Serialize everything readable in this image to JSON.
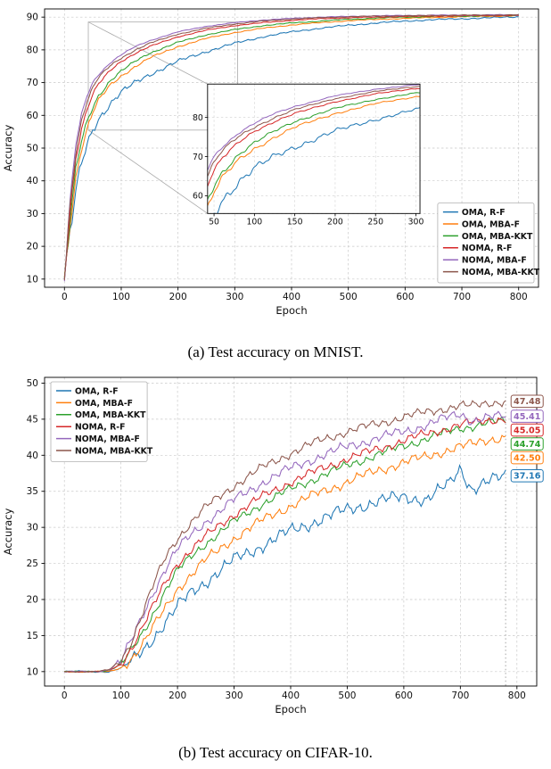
{
  "figure": {
    "caption_a": "(a) Test accuracy on MNIST.",
    "caption_b": "(b) Test accuracy on CIFAR-10."
  },
  "chart_data": [
    {
      "id": "mnist",
      "type": "line",
      "title": "",
      "xlabel": "Epoch",
      "ylabel": "Accuracy",
      "xlim": [
        -35,
        835
      ],
      "ylim": [
        7.5,
        92.5
      ],
      "xticks": [
        0,
        100,
        200,
        300,
        400,
        500,
        600,
        700,
        800
      ],
      "yticks": [
        10,
        20,
        30,
        40,
        50,
        60,
        70,
        80,
        90
      ],
      "grid": true,
      "legend_position": "lower-right",
      "noise_mode": "damped",
      "x": [
        0,
        10,
        20,
        30,
        40,
        50,
        60,
        80,
        100,
        125,
        150,
        200,
        250,
        300,
        350,
        400,
        450,
        500,
        550,
        600,
        650,
        700,
        750,
        800
      ],
      "series": [
        {
          "name": "OMA, R-F",
          "color": "#1f77b4",
          "noise": 2.0,
          "y": [
            10,
            24,
            36,
            45,
            51,
            55.5,
            59,
            63.5,
            67,
            70,
            72.5,
            76.5,
            79.5,
            82,
            84,
            85.5,
            86.6,
            87.5,
            88.2,
            88.8,
            89.2,
            89.5,
            89.8,
            90.1
          ]
        },
        {
          "name": "OMA, MBA-F",
          "color": "#ff7f0e",
          "noise": 1.3,
          "y": [
            10,
            27,
            41,
            50,
            56,
            61,
            64.5,
            69,
            72,
            75,
            77.5,
            81,
            83.5,
            85.3,
            86.6,
            87.6,
            88.3,
            88.9,
            89.3,
            89.6,
            89.9,
            90.1,
            90.3,
            90.4
          ]
        },
        {
          "name": "OMA, MBA-KKT",
          "color": "#2ca02c",
          "noise": 1.3,
          "y": [
            10,
            28,
            43,
            52,
            58,
            62.5,
            66,
            70.5,
            73.5,
            76.5,
            79,
            82.3,
            84.6,
            86.2,
            87.4,
            88.2,
            88.8,
            89.3,
            89.7,
            90,
            90.2,
            90.3,
            90.4,
            90.5
          ]
        },
        {
          "name": "NOMA, R-F",
          "color": "#d62728",
          "noise": 1.1,
          "y": [
            10,
            31,
            47,
            56,
            62,
            66.5,
            69.5,
            73.5,
            76.5,
            79,
            81,
            84,
            86,
            87.4,
            88.3,
            89,
            89.5,
            89.8,
            90,
            90.2,
            90.3,
            90.4,
            90.5,
            90.5
          ]
        },
        {
          "name": "NOMA, MBA-F",
          "color": "#9467bd",
          "noise": 0.9,
          "y": [
            10,
            34,
            51,
            60,
            66,
            70,
            72.5,
            76,
            78.5,
            81,
            82.8,
            85.5,
            87.2,
            88.3,
            89.1,
            89.6,
            90,
            90.2,
            90.4,
            90.5,
            90.6,
            90.6,
            90.7,
            90.7
          ]
        },
        {
          "name": "NOMA, MBA-KKT",
          "color": "#8c564b",
          "noise": 1.1,
          "y": [
            10,
            33,
            49,
            58.5,
            64.5,
            68.5,
            71.5,
            75,
            77.5,
            80,
            82,
            84.8,
            86.6,
            87.9,
            88.8,
            89.4,
            89.8,
            90.1,
            90.3,
            90.4,
            90.5,
            90.6,
            90.6,
            90.7
          ]
        }
      ],
      "inset": {
        "xlim": [
          42,
          305
        ],
        "ylim": [
          55.5,
          88.5
        ],
        "xticks": [
          50,
          100,
          150,
          200,
          250,
          300
        ],
        "yticks": [
          60,
          70,
          80
        ]
      }
    },
    {
      "id": "cifar",
      "type": "line",
      "title": "",
      "xlabel": "Epoch",
      "ylabel": "Accuracy",
      "xlim": [
        -35,
        835
      ],
      "ylim": [
        8,
        50.8
      ],
      "xticks": [
        0,
        100,
        200,
        300,
        400,
        500,
        600,
        700,
        800
      ],
      "yticks": [
        10,
        15,
        20,
        25,
        30,
        35,
        40,
        45,
        50
      ],
      "grid": true,
      "legend_position": "upper-left",
      "noise_mode": "flat-start",
      "vline_x": 780,
      "x": [
        0,
        20,
        40,
        60,
        80,
        100,
        120,
        140,
        160,
        180,
        200,
        225,
        250,
        275,
        300,
        350,
        400,
        450,
        500,
        550,
        600,
        640,
        680,
        700,
        720,
        750,
        780
      ],
      "series": [
        {
          "name": "OMA, R-F",
          "color": "#1f77b4",
          "noise": 1.2,
          "end_label": "37.16",
          "end_value": 37.16,
          "y": [
            10,
            10,
            10,
            10,
            10,
            10.5,
            11.5,
            13,
            15,
            17,
            19,
            21,
            22.5,
            24,
            25.5,
            27.5,
            29.5,
            31,
            32.5,
            33.5,
            34.3,
            33.8,
            36,
            38.3,
            35.3,
            36.3,
            37.16
          ]
        },
        {
          "name": "OMA, MBA-F",
          "color": "#ff7f0e",
          "noise": 0.9,
          "end_label": "42.50",
          "end_value": 42.5,
          "y": [
            10,
            10,
            10,
            10,
            10,
            10.5,
            12,
            14,
            16.5,
            19,
            21.5,
            23.5,
            25.5,
            27,
            28.5,
            31,
            33,
            34.8,
            36.3,
            37.8,
            39,
            39.8,
            40.8,
            41.2,
            41.5,
            42.2,
            42.5
          ]
        },
        {
          "name": "OMA, MBA-KKT",
          "color": "#2ca02c",
          "noise": 0.8,
          "end_label": "44.74",
          "end_value": 44.74,
          "y": [
            10,
            10,
            10,
            10,
            10.2,
            11,
            13,
            15.5,
            18.5,
            21.5,
            24,
            26,
            27.8,
            29.3,
            30.8,
            33.3,
            35.3,
            37,
            38.6,
            40,
            41.3,
            42.3,
            43.3,
            43.8,
            44,
            44.5,
            44.74
          ]
        },
        {
          "name": "NOMA, R-F",
          "color": "#d62728",
          "noise": 0.8,
          "end_label": "45.05",
          "end_value": 45.05,
          "y": [
            10,
            10,
            10,
            10,
            10.2,
            11,
            13.5,
            16.5,
            19.5,
            22.5,
            25,
            27,
            28.8,
            30.3,
            31.8,
            34.3,
            36.3,
            38,
            39.5,
            40.8,
            42,
            43,
            43.8,
            44.2,
            44.5,
            44.9,
            45.05
          ]
        },
        {
          "name": "NOMA, MBA-F",
          "color": "#9467bd",
          "noise": 0.9,
          "end_label": "45.41",
          "end_value": 45.41,
          "y": [
            10,
            10,
            10,
            10,
            10.3,
            11.5,
            14.5,
            18,
            21.5,
            24.5,
            27,
            29,
            30.8,
            32.3,
            33.8,
            36.2,
            38.2,
            39.8,
            41.2,
            42.3,
            43.3,
            44.2,
            45.3,
            45.8,
            44.8,
            45.2,
            45.41
          ]
        },
        {
          "name": "NOMA, MBA-KKT",
          "color": "#8c564b",
          "noise": 0.8,
          "end_label": "47.48",
          "end_value": 47.48,
          "y": [
            10,
            10,
            10,
            10,
            10.3,
            11.5,
            14.5,
            18.5,
            22.5,
            26,
            28.5,
            30.8,
            32.8,
            34.3,
            35.8,
            38.3,
            40.3,
            42,
            43.3,
            44.3,
            45.3,
            46,
            46.6,
            46.9,
            46.8,
            47.3,
            47.48
          ]
        }
      ]
    }
  ]
}
